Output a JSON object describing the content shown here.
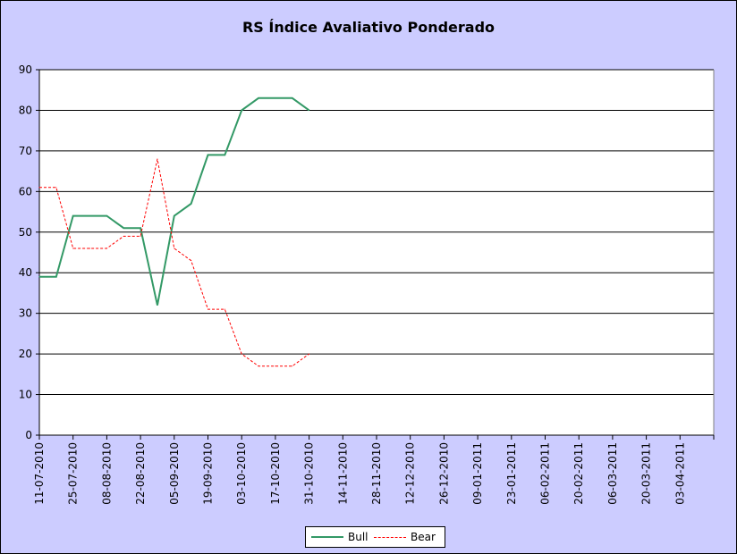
{
  "chart_data": {
    "type": "line",
    "title": "RS Índice Avaliativo Ponderado",
    "xlabel": "",
    "ylabel": "",
    "ylim": [
      0,
      90
    ],
    "y_ticks": [
      0,
      10,
      20,
      30,
      40,
      50,
      60,
      70,
      80,
      90
    ],
    "grid": true,
    "legend_position": "bottom",
    "x_tick_labels": [
      "11-07-2010",
      "25-07-2010",
      "08-08-2010",
      "22-08-2010",
      "05-09-2010",
      "19-09-2010",
      "03-10-2010",
      "17-10-2010",
      "31-10-2010",
      "14-11-2010",
      "28-11-2010",
      "12-12-2010",
      "26-12-2010",
      "09-01-2011",
      "23-01-2011",
      "06-02-2011",
      "20-02-2011",
      "06-03-2011",
      "20-03-2011",
      "03-04-2011"
    ],
    "x": [
      "11-07-2010",
      "18-07-2010",
      "25-07-2010",
      "01-08-2010",
      "08-08-2010",
      "15-08-2010",
      "22-08-2010",
      "29-08-2010",
      "05-09-2010",
      "12-09-2010",
      "19-09-2010",
      "26-09-2010",
      "03-10-2010",
      "10-10-2010",
      "17-10-2010",
      "24-10-2010",
      "31-10-2010"
    ],
    "series": [
      {
        "name": "Bull",
        "color": "#339966",
        "style": "solid",
        "values": [
          39,
          39,
          54,
          54,
          54,
          51,
          51,
          32,
          54,
          57,
          69,
          69,
          80,
          83,
          83,
          83,
          80
        ]
      },
      {
        "name": "Bear",
        "color": "#ff0000",
        "style": "dashed",
        "values": [
          61,
          61,
          46,
          46,
          46,
          49,
          49,
          68,
          46,
          43,
          31,
          31,
          20,
          17,
          17,
          17,
          20
        ]
      }
    ]
  }
}
